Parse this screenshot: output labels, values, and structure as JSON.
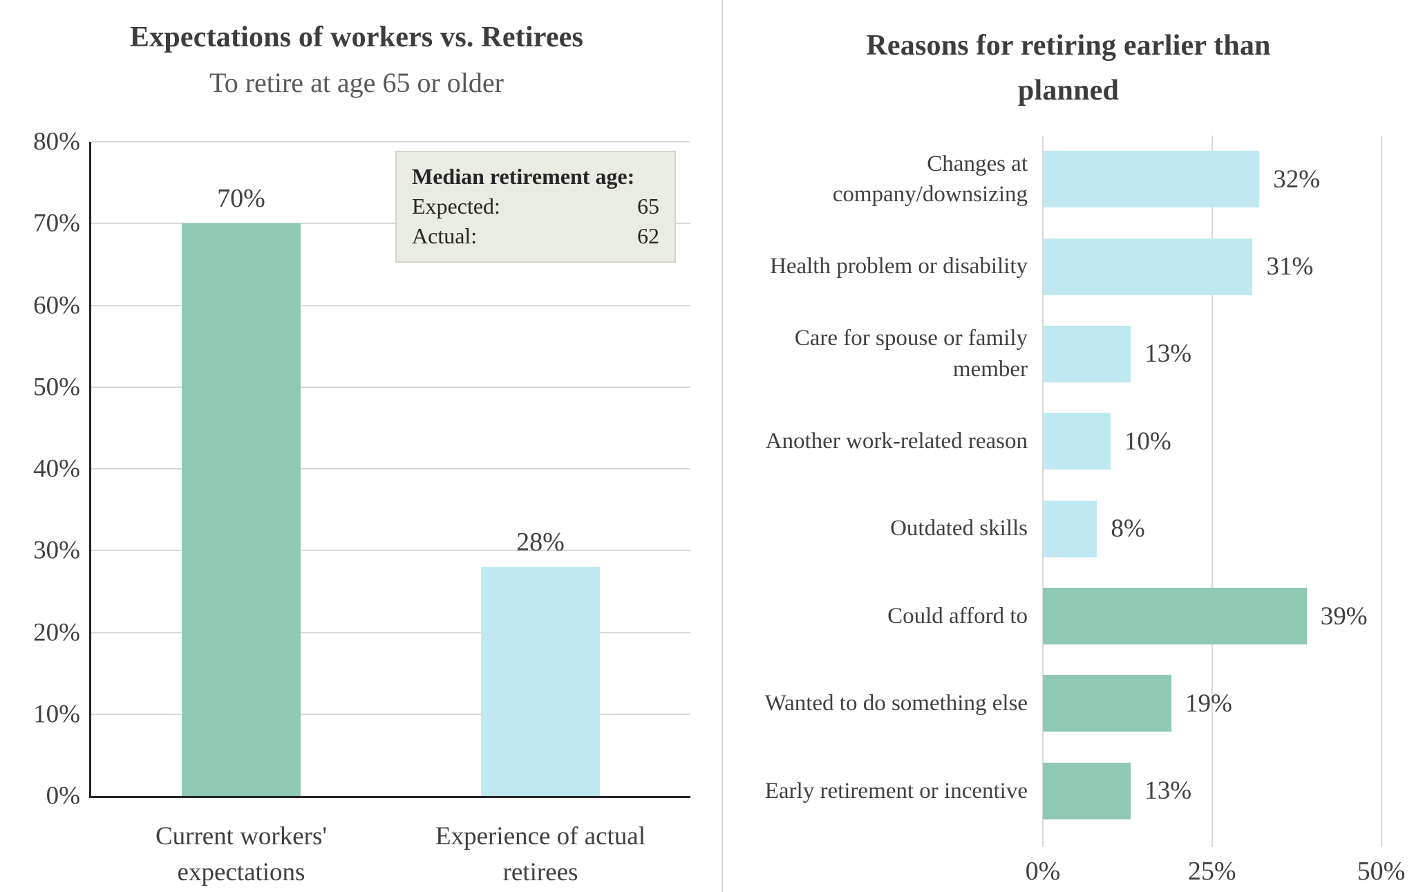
{
  "page": {
    "background": "#ffffff"
  },
  "colors": {
    "green_bar": "#8fc9b3",
    "cyan_bar": "#bfe8f0",
    "gridline": "#d9d9d9",
    "axis": "#262626",
    "title_text": "#3d3d3d",
    "body_text": "#404040",
    "divider": "#d9d9d9",
    "legend_box_bg": "#e9ece3",
    "legend_box_border": "#d3d6cb"
  },
  "left_chart": {
    "title": "Expectations of workers vs. Retirees",
    "subtitle": "To retire at age 65 or older",
    "legend_box": {
      "title": "Median retirement age:",
      "rows": [
        {
          "label": "Expected:",
          "value": "65"
        },
        {
          "label": "Actual:",
          "value": "62"
        }
      ]
    }
  },
  "right_chart": {
    "title": "Reasons for retiring earlier than\nplanned"
  },
  "chart_data": [
    {
      "type": "bar",
      "orientation": "vertical",
      "title": "Expectations of workers vs. Retirees",
      "subtitle": "To retire at age 65 or older",
      "categories": [
        "Current workers'\nexpectations",
        "Experience of actual\nretirees"
      ],
      "values": [
        70,
        28
      ],
      "value_labels": [
        "70%",
        "28%"
      ],
      "bar_colors": [
        "#8fc9b3",
        "#bfe8f0"
      ],
      "ylim": [
        0,
        80
      ],
      "yticks": [
        {
          "value": 0,
          "label": "0%"
        },
        {
          "value": 10,
          "label": "10%"
        },
        {
          "value": 20,
          "label": "20%"
        },
        {
          "value": 30,
          "label": "30%"
        },
        {
          "value": 40,
          "label": "40%"
        },
        {
          "value": 50,
          "label": "50%"
        },
        {
          "value": 60,
          "label": "60%"
        },
        {
          "value": 70,
          "label": "70%"
        },
        {
          "value": 80,
          "label": "80%"
        }
      ],
      "grid": true,
      "annotation": {
        "title": "Median retirement age:",
        "expected": "65",
        "actual": "62"
      }
    },
    {
      "type": "bar",
      "orientation": "horizontal",
      "title": "Reasons for retiring earlier than planned",
      "categories": [
        "Changes at\ncompany/downsizing",
        "Health problem or disability",
        "Care for spouse or family\nmember",
        "Another work-related reason",
        "Outdated skills",
        "Could afford to",
        "Wanted to do something else",
        "Early retirement or incentive"
      ],
      "values": [
        32,
        31,
        13,
        10,
        8,
        39,
        19,
        13
      ],
      "value_labels": [
        "32%",
        "31%",
        "13%",
        "10%",
        "8%",
        "39%",
        "19%",
        "13%"
      ],
      "bar_colors": [
        "#bfe8f0",
        "#bfe8f0",
        "#bfe8f0",
        "#bfe8f0",
        "#bfe8f0",
        "#8fc9b3",
        "#8fc9b3",
        "#8fc9b3"
      ],
      "xlim": [
        0,
        50
      ],
      "xticks": [
        {
          "value": 0,
          "label": "0%"
        },
        {
          "value": 25,
          "label": "25%"
        },
        {
          "value": 50,
          "label": "50%"
        }
      ],
      "grid": true
    }
  ]
}
